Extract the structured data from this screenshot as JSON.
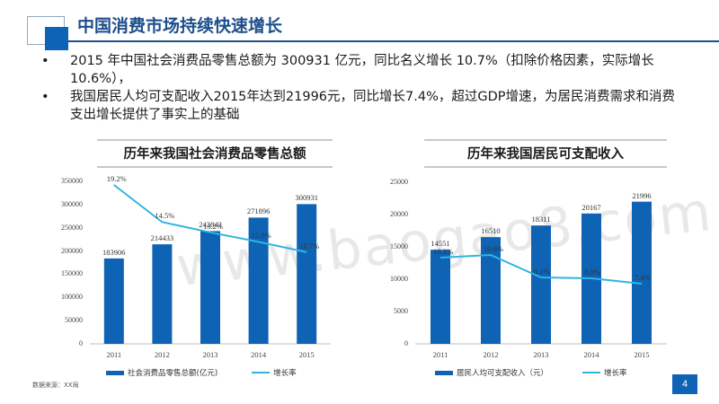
{
  "slide": {
    "title": "中国消费市场持续快速增长",
    "bullets": [
      "2015 年中国社会消费品零售总额为 300931 亿元，同比名义增长 10.7%（扣除价格因素，实际增长 10.6%），",
      "我国居民人均可支配收入2015年达到21996元，同比增长7.4%，超过GDP增速，为居民消费需求和消费支出增长提供了事实上的基础"
    ],
    "bullet_marker": "•",
    "source": "数据来源：XX局",
    "page_number": "4",
    "watermark": "www.baogao8.com",
    "colors": {
      "bar": "#0f63b5",
      "line": "#2fb5e0",
      "title": "#1d4f8c"
    }
  },
  "chart_data": [
    {
      "type": "bar",
      "title": "历年来我国社会消费品零售总额",
      "categories": [
        "2011",
        "2012",
        "2013",
        "2014",
        "2015"
      ],
      "ylim": [
        0,
        350000
      ],
      "yticks": [
        "0",
        "50000",
        "100000",
        "150000",
        "200000",
        "250000",
        "300000",
        "350000"
      ],
      "series": [
        {
          "name": "社会消费品零售总额(亿元)",
          "type": "bar",
          "values": [
            183906,
            214433,
            242843,
            271896,
            300931
          ],
          "labels": [
            "183906",
            "214433",
            "242843",
            "271896",
            "300931"
          ]
        },
        {
          "name": "增长率",
          "type": "line",
          "values": [
            19.2,
            14.5,
            13.2,
            12.0,
            10.7
          ],
          "labels": [
            "19.2%",
            "14.5%",
            "13.2%",
            "12.0%",
            "10.7%"
          ]
        }
      ],
      "grid": false,
      "legend": "bottom"
    },
    {
      "type": "bar",
      "title": "历年来我国居民可支配收入",
      "categories": [
        "2011",
        "2012",
        "2013",
        "2014",
        "2015"
      ],
      "ylim": [
        0,
        25000
      ],
      "yticks": [
        "0",
        "5000",
        "10000",
        "15000",
        "20000",
        "25000"
      ],
      "series": [
        {
          "name": "居民人均可支配收入（元）",
          "type": "bar",
          "values": [
            14551,
            16510,
            18311,
            20167,
            21996
          ],
          "labels": [
            "14551",
            "16510",
            "18311",
            "20167",
            "21996"
          ]
        },
        {
          "name": "增长率",
          "type": "line",
          "values": [
            10.3,
            10.6,
            8.1,
            8.0,
            7.4
          ],
          "labels": [
            "10.3%",
            "10.6%",
            "8.1%",
            "8.0%",
            "7.4%"
          ]
        }
      ],
      "grid": false,
      "legend": "bottom"
    }
  ]
}
